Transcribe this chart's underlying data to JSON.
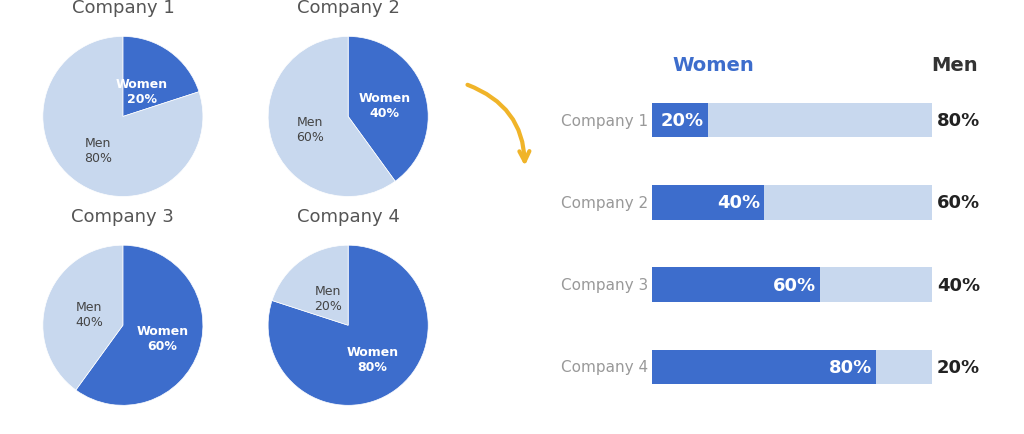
{
  "companies": [
    "Company 1",
    "Company 2",
    "Company 3",
    "Company 4"
  ],
  "women_pct": [
    20,
    40,
    60,
    80
  ],
  "men_pct": [
    80,
    60,
    40,
    20
  ],
  "color_women": "#3d6dcc",
  "color_men": "#c8d8ee",
  "color_pie_women": "#3d6dcc",
  "color_pie_men": "#c8d8ee",
  "bg_color": "#ffffff",
  "women_header_color": "#3d6dcc",
  "men_header_color": "#333333",
  "bar_label_women_color": "#ffffff",
  "bar_label_men_color": "#222222",
  "pie_label_women_color": "#ffffff",
  "pie_label_men_color": "#444444",
  "arrow_color": "#f0b429",
  "company_label_color": "#999999",
  "pie_title_color": "#555555",
  "pie_title_fontsize": 13,
  "bar_company_fontsize": 11,
  "bar_label_fontsize": 13,
  "header_fontsize": 14,
  "pie_label_fontsize": 9
}
